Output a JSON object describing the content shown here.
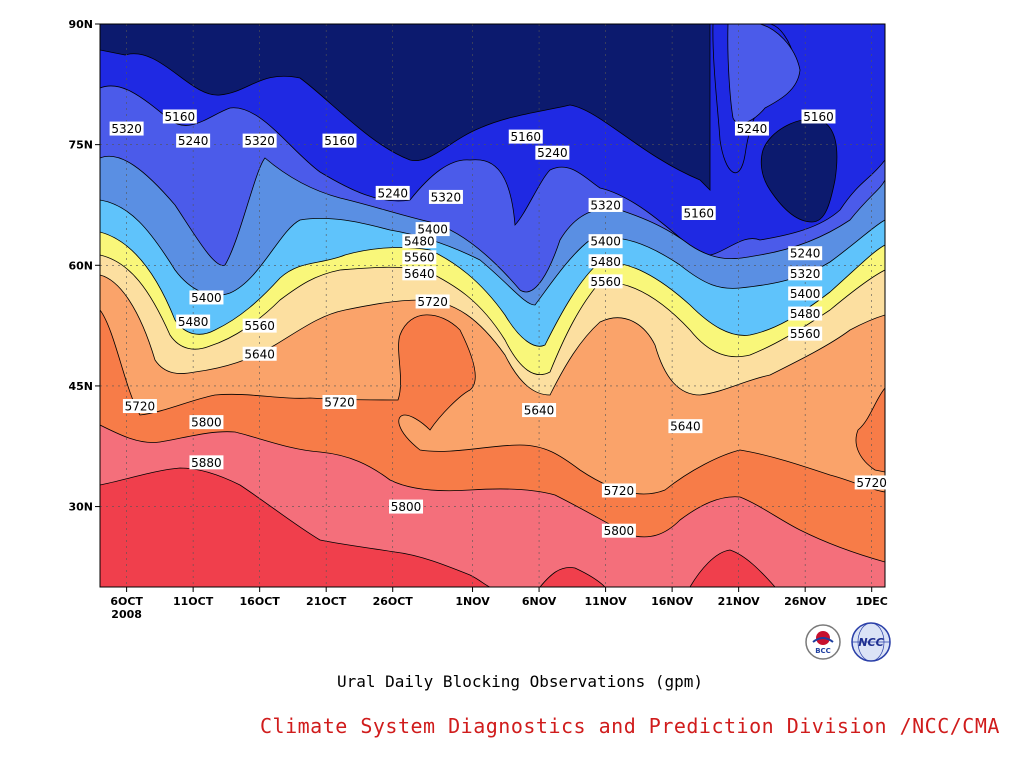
{
  "chart_data": {
    "type": "contour",
    "title": "Ural Daily Blocking Observations (gpm)",
    "xlabel": "",
    "ylabel": "",
    "x_ticks": [
      "6OCT",
      "11OCT",
      "16OCT",
      "21OCT",
      "26OCT",
      "1NOV",
      "6NOV",
      "11NOV",
      "16NOV",
      "21NOV",
      "26NOV",
      "1DEC"
    ],
    "x_tick_year": "2008",
    "y_ticks": [
      "30N",
      "45N",
      "60N",
      "75N",
      "90N"
    ],
    "ylim_deg": [
      20,
      90
    ],
    "xlim_days": [
      "2008-10-04",
      "2008-12-02"
    ],
    "grid": true,
    "contour_levels": [
      5160,
      5240,
      5320,
      5400,
      5480,
      5560,
      5640,
      5720,
      5800,
      5880
    ],
    "fill_colors": [
      "#0c1a6e",
      "#1f29e3",
      "#4b5bea",
      "#5a8fe3",
      "#5fc3fb",
      "#f9f77a",
      "#fcdfa0",
      "#faa36a",
      "#f77c48",
      "#f46f7b",
      "#f03f4c"
    ],
    "contour_labels": [
      {
        "text": "5160",
        "lon_day": "10OCT",
        "lat": 78.5
      },
      {
        "text": "5320",
        "lon_day": "6OCT",
        "lat": 77
      },
      {
        "text": "5240",
        "lon_day": "11OCT",
        "lat": 75.5
      },
      {
        "text": "5320",
        "lon_day": "16OCT",
        "lat": 75.5
      },
      {
        "text": "5160",
        "lon_day": "22OCT",
        "lat": 75.5
      },
      {
        "text": "5160",
        "lon_day": "5NOV",
        "lat": 76
      },
      {
        "text": "5240",
        "lon_day": "7NOV",
        "lat": 74
      },
      {
        "text": "5240",
        "lon_day": "26OCT",
        "lat": 69
      },
      {
        "text": "5320",
        "lon_day": "30OCT",
        "lat": 68.5
      },
      {
        "text": "5240",
        "lon_day": "22NOV",
        "lat": 77
      },
      {
        "text": "5160",
        "lon_day": "27NOV",
        "lat": 78.5
      },
      {
        "text": "5160",
        "lon_day": "18NOV",
        "lat": 66.5
      },
      {
        "text": "5320",
        "lon_day": "11NOV",
        "lat": 67.5
      },
      {
        "text": "5400",
        "lon_day": "29OCT",
        "lat": 64.5
      },
      {
        "text": "5480",
        "lon_day": "28OCT",
        "lat": 63
      },
      {
        "text": "5560",
        "lon_day": "28OCT",
        "lat": 61
      },
      {
        "text": "5640",
        "lon_day": "28OCT",
        "lat": 59
      },
      {
        "text": "5720",
        "lon_day": "29OCT",
        "lat": 55.5
      },
      {
        "text": "5400",
        "lon_day": "11NOV",
        "lat": 63
      },
      {
        "text": "5480",
        "lon_day": "11NOV",
        "lat": 60.5
      },
      {
        "text": "5560",
        "lon_day": "11NOV",
        "lat": 58
      },
      {
        "text": "5400",
        "lon_day": "12OCT",
        "lat": 56
      },
      {
        "text": "5480",
        "lon_day": "11OCT",
        "lat": 53
      },
      {
        "text": "5560",
        "lon_day": "16OCT",
        "lat": 52.5
      },
      {
        "text": "5640",
        "lon_day": "16OCT",
        "lat": 49
      },
      {
        "text": "5240",
        "lon_day": "26NOV",
        "lat": 61.5
      },
      {
        "text": "5320",
        "lon_day": "26NOV",
        "lat": 59
      },
      {
        "text": "5400",
        "lon_day": "26NOV",
        "lat": 56.5
      },
      {
        "text": "5480",
        "lon_day": "26NOV",
        "lat": 54
      },
      {
        "text": "5560",
        "lon_day": "26NOV",
        "lat": 51.5
      },
      {
        "text": "5720",
        "lon_day": "7OCT",
        "lat": 42.5
      },
      {
        "text": "5800",
        "lon_day": "12OCT",
        "lat": 40.5
      },
      {
        "text": "5880",
        "lon_day": "12OCT",
        "lat": 35.5
      },
      {
        "text": "5720",
        "lon_day": "22OCT",
        "lat": 43
      },
      {
        "text": "5640",
        "lon_day": "6NOV",
        "lat": 42
      },
      {
        "text": "5640",
        "lon_day": "17NOV",
        "lat": 40
      },
      {
        "text": "5720",
        "lon_day": "12NOV",
        "lat": 32
      },
      {
        "text": "5800",
        "lon_day": "12NOV",
        "lat": 27
      },
      {
        "text": "5800",
        "lon_day": "27OCT",
        "lat": 30
      },
      {
        "text": "5720",
        "lon_day": "1DEC",
        "lat": 33
      }
    ]
  },
  "footer": {
    "title": "Ural Daily Blocking Observations (gpm)",
    "credit": "Climate System Diagnostics and Prediction Division /NCC/CMA"
  },
  "logos": [
    {
      "name": "bcc-logo",
      "text": "BCC"
    },
    {
      "name": "ncc-logo",
      "text": "NCC"
    }
  ]
}
